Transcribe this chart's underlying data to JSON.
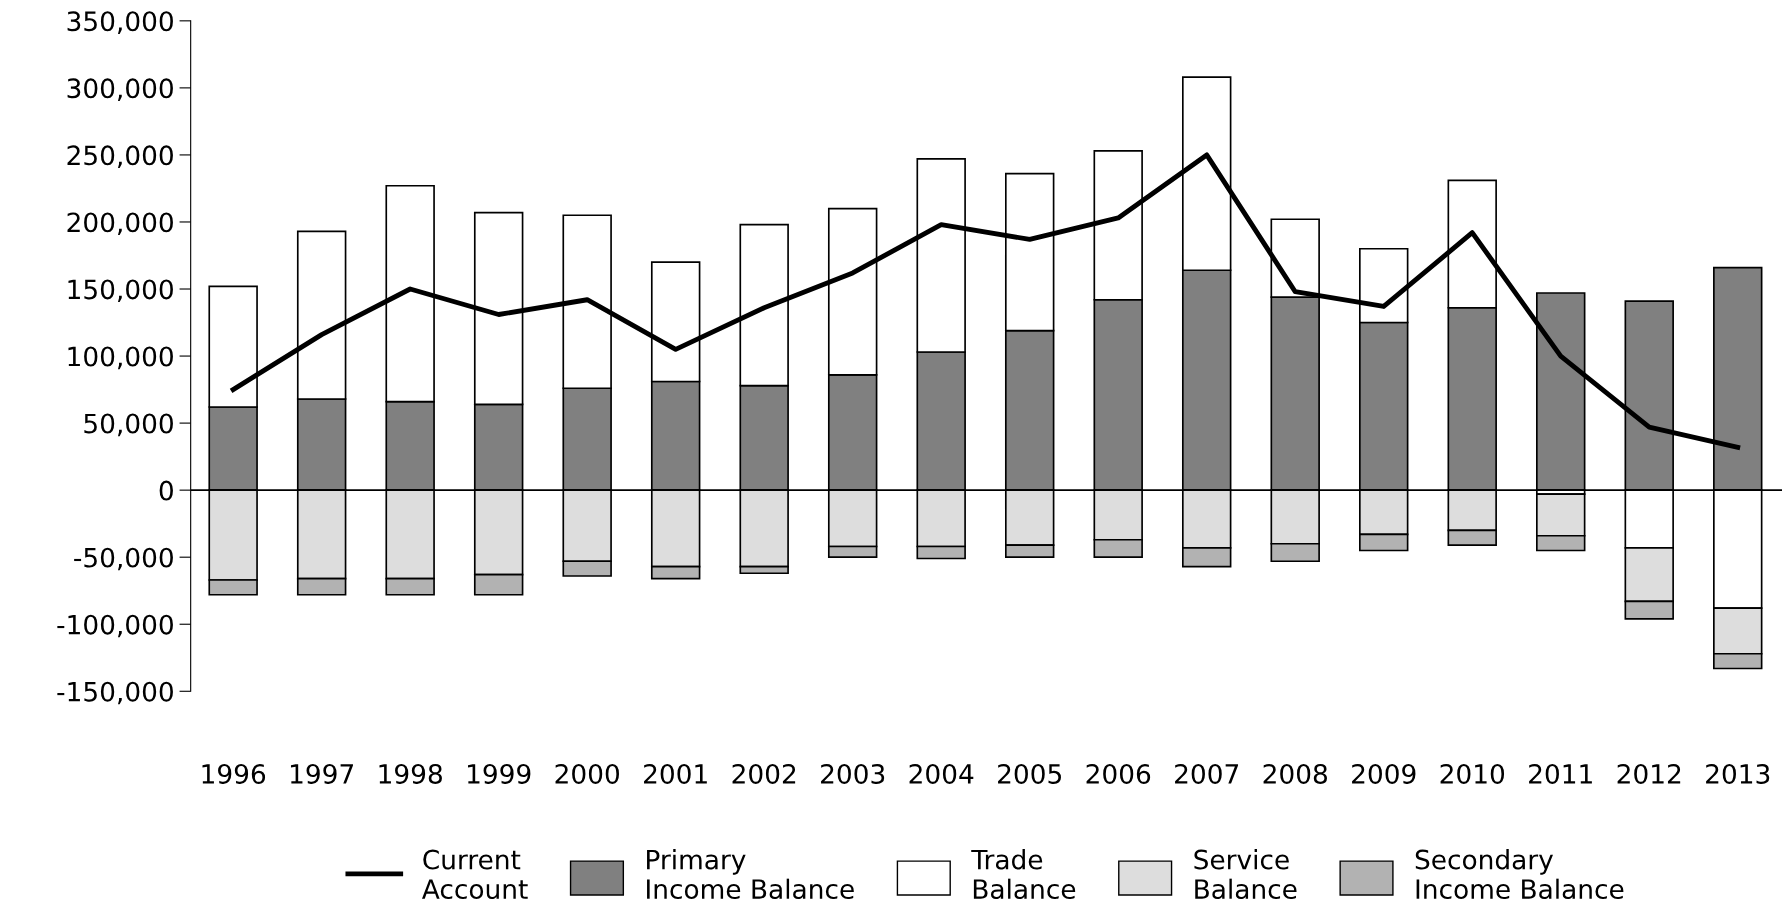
{
  "chart_data": {
    "type": "bar",
    "stacked": true,
    "categories": [
      "1996",
      "1997",
      "1998",
      "1999",
      "2000",
      "2001",
      "2002",
      "2003",
      "2004",
      "2005",
      "2006",
      "2007",
      "2008",
      "2009",
      "2010",
      "2011",
      "2012",
      "2013"
    ],
    "ylim": [
      -150000,
      350000
    ],
    "yticks": [
      {
        "value": -150000,
        "label": "-150,000"
      },
      {
        "value": -100000,
        "label": "-100,000"
      },
      {
        "value": -50000,
        "label": "-50,000"
      },
      {
        "value": 0,
        "label": "0"
      },
      {
        "value": 50000,
        "label": "50,000"
      },
      {
        "value": 100000,
        "label": "100,000"
      },
      {
        "value": 150000,
        "label": "150,000"
      },
      {
        "value": 200000,
        "label": "200,000"
      },
      {
        "value": 250000,
        "label": "250,000"
      },
      {
        "value": 300000,
        "label": "300,000"
      },
      {
        "value": 350000,
        "label": "350,000"
      }
    ],
    "legend": "bottom",
    "marker": "none",
    "line_style": "solid",
    "series": [
      {
        "name": "Current\nAccount",
        "type": "line",
        "color": "#000000",
        "values": [
          75000,
          116000,
          150000,
          131000,
          142000,
          105000,
          136000,
          162000,
          198000,
          187000,
          203000,
          250000,
          148000,
          137000,
          192000,
          100000,
          47000,
          32000
        ]
      },
      {
        "name": "Primary\nIncome Balance",
        "color": "#808080",
        "values": [
          62000,
          68000,
          66000,
          64000,
          76000,
          81000,
          78000,
          86000,
          103000,
          119000,
          142000,
          164000,
          144000,
          125000,
          136000,
          147000,
          141000,
          166000
        ]
      },
      {
        "name": "Trade\nBalance",
        "color": "#ffffff",
        "values": [
          90000,
          125000,
          161000,
          143000,
          129000,
          89000,
          120000,
          124000,
          144000,
          117000,
          111000,
          144000,
          58000,
          55000,
          95000,
          -3000,
          -43000,
          -88000
        ]
      },
      {
        "name": "Service\nBalance",
        "color": "#dddddd",
        "values": [
          -67000,
          -66000,
          -66000,
          -63000,
          -53000,
          -57000,
          -57000,
          -42000,
          -42000,
          -41000,
          -37000,
          -43000,
          -40000,
          -33000,
          -30000,
          -31000,
          -40000,
          -34000
        ]
      },
      {
        "name": "Secondary\nIncome Balance",
        "color": "#b2b2b2",
        "values": [
          -11000,
          -12000,
          -12000,
          -15000,
          -11000,
          -9000,
          -5000,
          -8000,
          -9000,
          -9000,
          -13000,
          -14000,
          -13000,
          -12000,
          -11000,
          -11000,
          -13000,
          -11000
        ]
      }
    ]
  }
}
